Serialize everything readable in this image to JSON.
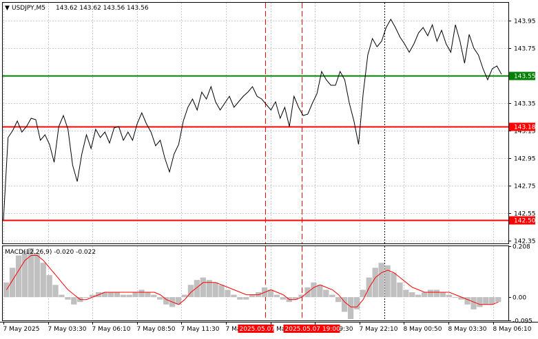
{
  "header": {
    "collapse_glyph": "▼",
    "symbol_timeframe": "USDJPY,M5",
    "ohlc": "143.62 143.62 143.56 143.56"
  },
  "macd": {
    "label": "MACD(12,26,9) -0.020 -0.022"
  },
  "colors": {
    "price_line": "#000000",
    "level_green": "#008000",
    "level_red": "#ff0000",
    "macd_hist": "#c0c0c0",
    "macd_signal": "#ff0000",
    "grid": "#c8c8d8",
    "tag_red": "#ff0000",
    "tag_green": "#008000"
  },
  "chart_data": [
    {
      "type": "line",
      "title": "USDJPY,M5",
      "ylim": [
        142.33,
        144.08
      ],
      "y_ticks": [
        "143.95",
        "143.75",
        "143.55",
        "143.35",
        "143.15",
        "142.95",
        "142.75",
        "142.55",
        "142.35"
      ],
      "x_ticks": [
        "7 May 2025",
        "7 May 03:30",
        "7 May 06:10",
        "7 May 08:50",
        "7 May 11:30",
        "7 May 14:10",
        "7 May 16:50",
        "7 May 19:30",
        "7 May 22:10",
        "8 May 00:50",
        "8 May 03:30",
        "8 May 06:10"
      ],
      "levels": [
        {
          "value": 143.55,
          "label": "143.55",
          "color": "green"
        },
        {
          "value": 143.18,
          "label": "143.18",
          "color": "red"
        },
        {
          "value": 142.5,
          "label": "142.50",
          "color": "red"
        }
      ],
      "vertical_markers": [
        "2025.05.07",
        "2025.05.07 19:00"
      ],
      "series": [
        {
          "values": [
            142.5,
            143.1,
            143.15,
            143.22,
            143.14,
            143.18,
            143.24,
            143.23,
            143.08,
            143.12,
            143.05,
            142.92,
            143.18,
            143.26,
            143.16,
            142.9,
            142.78,
            142.98,
            143.12,
            143.02,
            143.16,
            143.1,
            143.14,
            143.06,
            143.17,
            143.18,
            143.08,
            143.14,
            143.08,
            143.2,
            143.28,
            143.2,
            143.14,
            143.04,
            143.08,
            142.95,
            142.85,
            142.98,
            143.05,
            143.22,
            143.32,
            143.38,
            143.3,
            143.43,
            143.38,
            143.47,
            143.36,
            143.3,
            143.35,
            143.4,
            143.32,
            143.36,
            143.4,
            143.43,
            143.47,
            143.4,
            143.38,
            143.34,
            143.3,
            143.36,
            143.24,
            143.32,
            143.18,
            143.4,
            143.32,
            143.26,
            143.27,
            143.35,
            143.42,
            143.58,
            143.52,
            143.48,
            143.48,
            143.58,
            143.52,
            143.35,
            143.22,
            143.05,
            143.42,
            143.7,
            143.82,
            143.76,
            143.8,
            143.9,
            143.96,
            143.9,
            143.83,
            143.78,
            143.72,
            143.78,
            143.86,
            143.9,
            143.84,
            143.92,
            143.8,
            143.88,
            143.78,
            143.72,
            143.92,
            143.8,
            143.64,
            143.85,
            143.75,
            143.7,
            143.6,
            143.52,
            143.6,
            143.62,
            143.56
          ]
        }
      ]
    },
    {
      "type": "bar",
      "title": "MACD(12,26,9)",
      "ylim": [
        -0.095,
        0.208
      ],
      "y_ticks": [
        "0.208",
        "0.00",
        "-0.095"
      ],
      "series": [
        {
          "name": "MACD",
          "values": [
            0.06,
            0.12,
            0.17,
            0.19,
            0.2,
            0.18,
            0.14,
            0.09,
            0.05,
            0.01,
            -0.01,
            -0.03,
            -0.02,
            0.0,
            0.01,
            0.02,
            0.02,
            0.02,
            0.02,
            0.01,
            0.01,
            0.02,
            0.03,
            0.02,
            0.01,
            -0.01,
            -0.03,
            -0.04,
            -0.03,
            0.01,
            0.05,
            0.07,
            0.08,
            0.07,
            0.06,
            0.05,
            0.03,
            0.01,
            -0.01,
            -0.01,
            0.01,
            0.02,
            0.04,
            0.03,
            0.01,
            -0.01,
            -0.02,
            -0.01,
            0.01,
            0.04,
            0.06,
            0.05,
            0.03,
            0.01,
            -0.02,
            -0.06,
            -0.09,
            -0.05,
            0.03,
            0.08,
            0.12,
            0.14,
            0.13,
            0.1,
            0.06,
            0.03,
            0.02,
            0.01,
            0.02,
            0.03,
            0.03,
            0.02,
            0.01,
            0.0,
            -0.01,
            -0.03,
            -0.05,
            -0.04,
            -0.03,
            -0.03,
            -0.02
          ]
        },
        {
          "name": "Signal",
          "values": [
            0.03,
            0.07,
            0.11,
            0.15,
            0.17,
            0.17,
            0.15,
            0.12,
            0.09,
            0.06,
            0.03,
            0.01,
            -0.01,
            -0.01,
            0.0,
            0.01,
            0.02,
            0.02,
            0.02,
            0.02,
            0.02,
            0.02,
            0.02,
            0.02,
            0.02,
            0.01,
            -0.01,
            -0.02,
            -0.03,
            -0.01,
            0.02,
            0.04,
            0.06,
            0.06,
            0.06,
            0.05,
            0.04,
            0.03,
            0.02,
            0.01,
            0.01,
            0.01,
            0.02,
            0.03,
            0.02,
            0.01,
            -0.01,
            -0.01,
            0.0,
            0.02,
            0.04,
            0.05,
            0.04,
            0.03,
            0.01,
            -0.02,
            -0.04,
            -0.04,
            -0.01,
            0.04,
            0.08,
            0.1,
            0.11,
            0.1,
            0.08,
            0.06,
            0.04,
            0.03,
            0.02,
            0.02,
            0.02,
            0.02,
            0.02,
            0.01,
            0.0,
            -0.01,
            -0.02,
            -0.03,
            -0.03,
            -0.03,
            -0.02
          ]
        }
      ]
    }
  ]
}
